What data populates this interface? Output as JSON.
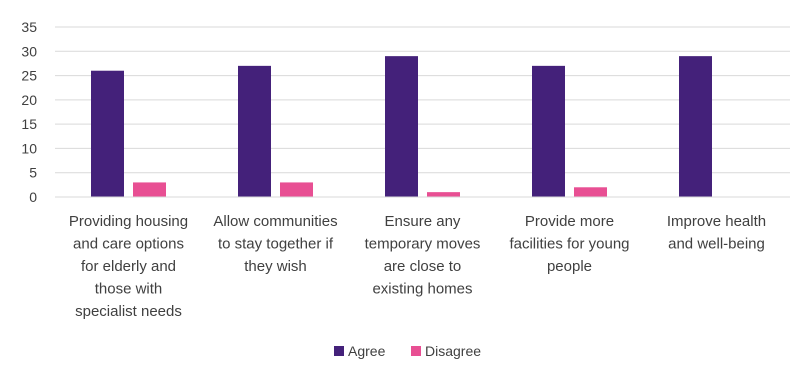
{
  "chart_data": {
    "type": "bar",
    "title": "",
    "xlabel": "",
    "ylabel": "",
    "ylim": [
      0,
      35
    ],
    "yticks": [
      0,
      5,
      10,
      15,
      20,
      25,
      30,
      35
    ],
    "grid": true,
    "legend_position": "bottom",
    "categories": [
      [
        "Providing housing",
        "and care options",
        "for elderly and",
        "those with",
        "specialist needs"
      ],
      [
        "Allow communities",
        "to stay together if",
        "they wish"
      ],
      [
        "Ensure any",
        "temporary moves",
        "are close to",
        "existing homes"
      ],
      [
        "Provide more",
        "facilities for young",
        "people"
      ],
      [
        "Improve health",
        "and well-being"
      ]
    ],
    "series": [
      {
        "name": "Agree",
        "color": "#44217a",
        "values": [
          26,
          27,
          29,
          27,
          29
        ]
      },
      {
        "name": "Disagree",
        "color": "#e84f93",
        "values": [
          3,
          3,
          1,
          2,
          0
        ]
      }
    ]
  }
}
